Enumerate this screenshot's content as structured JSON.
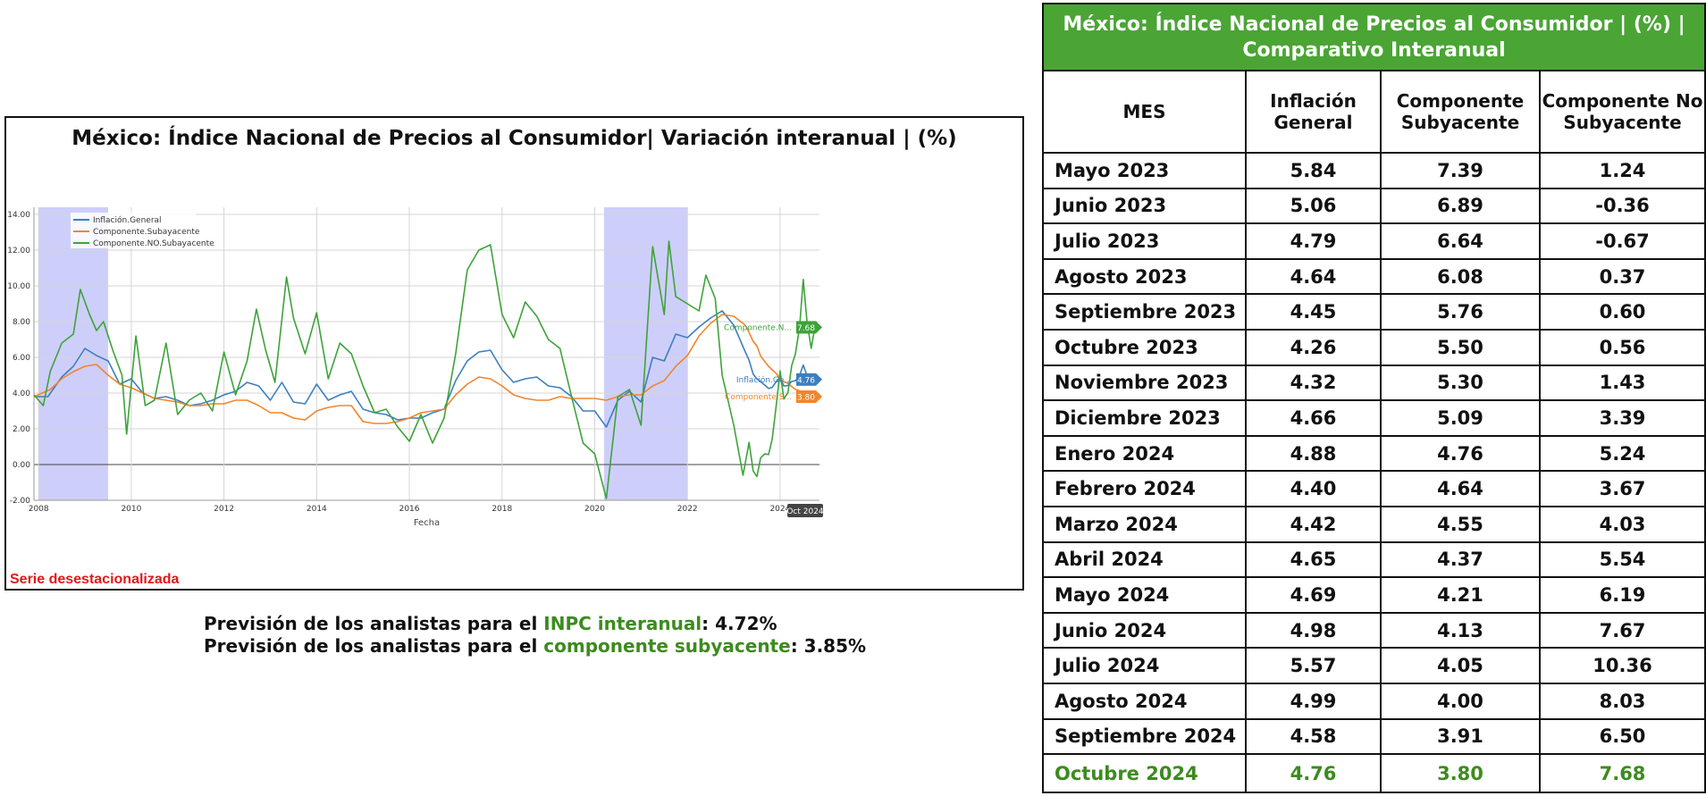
{
  "chart_data": {
    "type": "line",
    "title": "México: Índice Nacional de Precios al Consumidor| Variación interanual | (%)",
    "xlabel": "Fecha",
    "ylabel": "",
    "ylim": [
      -2,
      14
    ],
    "xlim": [
      2007.9,
      2024.85
    ],
    "x_ticks": [
      "2008",
      "2010",
      "2012",
      "2014",
      "2016",
      "2018",
      "2020",
      "2022",
      "2024"
    ],
    "y_ticks": [
      "-2.00",
      "0.00",
      "2.00",
      "4.00",
      "6.00",
      "8.00",
      "10.00",
      "12.00",
      "14.00"
    ],
    "grid": true,
    "legend": "top-left",
    "shaded_periods": [
      [
        2008.0,
        2009.5
      ],
      [
        2020.2,
        2022.0
      ]
    ],
    "series": [
      {
        "name": "Inflación.General",
        "color": "#3c7fc1",
        "points": [
          [
            2007.9,
            3.8
          ],
          [
            2008.2,
            3.8
          ],
          [
            2008.5,
            4.9
          ],
          [
            2008.75,
            5.5
          ],
          [
            2009.0,
            6.5
          ],
          [
            2009.25,
            6.1
          ],
          [
            2009.5,
            5.8
          ],
          [
            2009.75,
            4.5
          ],
          [
            2010.0,
            4.8
          ],
          [
            2010.25,
            4.0
          ],
          [
            2010.5,
            3.7
          ],
          [
            2010.75,
            3.8
          ],
          [
            2011.0,
            3.6
          ],
          [
            2011.25,
            3.3
          ],
          [
            2011.5,
            3.4
          ],
          [
            2011.75,
            3.6
          ],
          [
            2012.0,
            3.9
          ],
          [
            2012.25,
            4.1
          ],
          [
            2012.5,
            4.6
          ],
          [
            2012.75,
            4.4
          ],
          [
            2013.0,
            3.6
          ],
          [
            2013.25,
            4.6
          ],
          [
            2013.5,
            3.5
          ],
          [
            2013.75,
            3.4
          ],
          [
            2014.0,
            4.5
          ],
          [
            2014.25,
            3.6
          ],
          [
            2014.5,
            3.9
          ],
          [
            2014.75,
            4.1
          ],
          [
            2015.0,
            3.1
          ],
          [
            2015.25,
            2.9
          ],
          [
            2015.5,
            2.8
          ],
          [
            2015.75,
            2.5
          ],
          [
            2016.0,
            2.6
          ],
          [
            2016.25,
            2.6
          ],
          [
            2016.5,
            2.9
          ],
          [
            2016.75,
            3.1
          ],
          [
            2017.0,
            4.7
          ],
          [
            2017.25,
            5.8
          ],
          [
            2017.5,
            6.3
          ],
          [
            2017.75,
            6.4
          ],
          [
            2018.0,
            5.3
          ],
          [
            2018.25,
            4.6
          ],
          [
            2018.5,
            4.8
          ],
          [
            2018.75,
            4.9
          ],
          [
            2019.0,
            4.4
          ],
          [
            2019.25,
            4.3
          ],
          [
            2019.5,
            3.8
          ],
          [
            2019.75,
            3.0
          ],
          [
            2020.0,
            3.0
          ],
          [
            2020.25,
            2.1
          ],
          [
            2020.5,
            3.6
          ],
          [
            2020.75,
            4.1
          ],
          [
            2021.0,
            3.5
          ],
          [
            2021.25,
            6.0
          ],
          [
            2021.5,
            5.8
          ],
          [
            2021.75,
            7.3
          ],
          [
            2022.0,
            7.1
          ],
          [
            2022.25,
            7.7
          ],
          [
            2022.5,
            8.2
          ],
          [
            2022.75,
            8.6
          ],
          [
            2023.0,
            7.8
          ],
          [
            2023.25,
            6.3
          ],
          [
            2023.33,
            5.84
          ],
          [
            2023.42,
            5.06
          ],
          [
            2023.5,
            4.79
          ],
          [
            2023.58,
            4.64
          ],
          [
            2023.67,
            4.45
          ],
          [
            2023.75,
            4.26
          ],
          [
            2023.83,
            4.32
          ],
          [
            2023.92,
            4.66
          ],
          [
            2024.0,
            4.88
          ],
          [
            2024.08,
            4.4
          ],
          [
            2024.17,
            4.42
          ],
          [
            2024.25,
            4.65
          ],
          [
            2024.33,
            4.69
          ],
          [
            2024.42,
            4.98
          ],
          [
            2024.5,
            5.57
          ],
          [
            2024.58,
            4.99
          ],
          [
            2024.67,
            4.58
          ],
          [
            2024.75,
            4.76
          ]
        ]
      },
      {
        "name": "Componente.Subayacente",
        "color": "#f2852a",
        "points": [
          [
            2007.9,
            3.8
          ],
          [
            2008.25,
            4.2
          ],
          [
            2008.5,
            4.8
          ],
          [
            2008.75,
            5.2
          ],
          [
            2009.0,
            5.5
          ],
          [
            2009.25,
            5.6
          ],
          [
            2009.5,
            5.0
          ],
          [
            2009.75,
            4.5
          ],
          [
            2010.0,
            4.3
          ],
          [
            2010.25,
            4.0
          ],
          [
            2010.5,
            3.7
          ],
          [
            2010.75,
            3.6
          ],
          [
            2011.0,
            3.5
          ],
          [
            2011.25,
            3.3
          ],
          [
            2011.5,
            3.3
          ],
          [
            2011.75,
            3.4
          ],
          [
            2012.0,
            3.4
          ],
          [
            2012.25,
            3.6
          ],
          [
            2012.5,
            3.6
          ],
          [
            2012.75,
            3.3
          ],
          [
            2013.0,
            2.9
          ],
          [
            2013.25,
            2.9
          ],
          [
            2013.5,
            2.6
          ],
          [
            2013.75,
            2.5
          ],
          [
            2014.0,
            3.0
          ],
          [
            2014.25,
            3.2
          ],
          [
            2014.5,
            3.3
          ],
          [
            2014.75,
            3.3
          ],
          [
            2015.0,
            2.4
          ],
          [
            2015.25,
            2.3
          ],
          [
            2015.5,
            2.3
          ],
          [
            2015.75,
            2.4
          ],
          [
            2016.0,
            2.6
          ],
          [
            2016.25,
            2.9
          ],
          [
            2016.5,
            3.0
          ],
          [
            2016.75,
            3.1
          ],
          [
            2017.0,
            3.9
          ],
          [
            2017.25,
            4.5
          ],
          [
            2017.5,
            4.9
          ],
          [
            2017.75,
            4.8
          ],
          [
            2018.0,
            4.4
          ],
          [
            2018.25,
            3.9
          ],
          [
            2018.5,
            3.7
          ],
          [
            2018.75,
            3.6
          ],
          [
            2019.0,
            3.6
          ],
          [
            2019.25,
            3.8
          ],
          [
            2019.5,
            3.7
          ],
          [
            2019.75,
            3.7
          ],
          [
            2020.0,
            3.7
          ],
          [
            2020.25,
            3.6
          ],
          [
            2020.5,
            3.8
          ],
          [
            2020.75,
            3.9
          ],
          [
            2021.0,
            3.9
          ],
          [
            2021.25,
            4.4
          ],
          [
            2021.5,
            4.7
          ],
          [
            2021.75,
            5.5
          ],
          [
            2022.0,
            6.1
          ],
          [
            2022.25,
            7.2
          ],
          [
            2022.5,
            7.9
          ],
          [
            2022.75,
            8.4
          ],
          [
            2023.0,
            8.3
          ],
          [
            2023.25,
            7.8
          ],
          [
            2023.33,
            7.39
          ],
          [
            2023.42,
            6.89
          ],
          [
            2023.5,
            6.64
          ],
          [
            2023.58,
            6.08
          ],
          [
            2023.67,
            5.76
          ],
          [
            2023.75,
            5.5
          ],
          [
            2023.83,
            5.3
          ],
          [
            2023.92,
            5.09
          ],
          [
            2024.0,
            4.76
          ],
          [
            2024.08,
            4.64
          ],
          [
            2024.17,
            4.55
          ],
          [
            2024.25,
            4.37
          ],
          [
            2024.33,
            4.21
          ],
          [
            2024.42,
            4.13
          ],
          [
            2024.5,
            4.05
          ],
          [
            2024.58,
            4.0
          ],
          [
            2024.67,
            3.91
          ],
          [
            2024.75,
            3.8
          ]
        ]
      },
      {
        "name": "Componente.NO.Subayacente",
        "color": "#3da33a",
        "points": [
          [
            2007.9,
            3.9
          ],
          [
            2008.1,
            3.3
          ],
          [
            2008.25,
            5.2
          ],
          [
            2008.5,
            6.8
          ],
          [
            2008.75,
            7.3
          ],
          [
            2008.9,
            9.8
          ],
          [
            2009.1,
            8.4
          ],
          [
            2009.25,
            7.5
          ],
          [
            2009.4,
            8.0
          ],
          [
            2009.6,
            6.4
          ],
          [
            2009.8,
            5.0
          ],
          [
            2009.9,
            1.7
          ],
          [
            2010.1,
            7.2
          ],
          [
            2010.3,
            3.3
          ],
          [
            2010.5,
            3.6
          ],
          [
            2010.75,
            6.8
          ],
          [
            2011.0,
            2.8
          ],
          [
            2011.25,
            3.6
          ],
          [
            2011.5,
            4.0
          ],
          [
            2011.75,
            3.0
          ],
          [
            2012.0,
            6.3
          ],
          [
            2012.25,
            3.9
          ],
          [
            2012.5,
            5.8
          ],
          [
            2012.7,
            8.7
          ],
          [
            2012.9,
            6.4
          ],
          [
            2013.1,
            4.6
          ],
          [
            2013.35,
            10.5
          ],
          [
            2013.5,
            8.2
          ],
          [
            2013.75,
            6.2
          ],
          [
            2014.0,
            8.5
          ],
          [
            2014.25,
            4.8
          ],
          [
            2014.5,
            6.8
          ],
          [
            2014.75,
            6.2
          ],
          [
            2015.0,
            4.4
          ],
          [
            2015.25,
            2.9
          ],
          [
            2015.5,
            3.1
          ],
          [
            2015.75,
            2.1
          ],
          [
            2016.0,
            1.3
          ],
          [
            2016.25,
            2.8
          ],
          [
            2016.5,
            1.2
          ],
          [
            2016.75,
            2.6
          ],
          [
            2017.0,
            6.2
          ],
          [
            2017.25,
            10.9
          ],
          [
            2017.5,
            12.0
          ],
          [
            2017.75,
            12.3
          ],
          [
            2018.0,
            8.4
          ],
          [
            2018.25,
            7.1
          ],
          [
            2018.5,
            9.1
          ],
          [
            2018.75,
            8.3
          ],
          [
            2019.0,
            7.0
          ],
          [
            2019.25,
            6.5
          ],
          [
            2019.5,
            3.8
          ],
          [
            2019.75,
            1.2
          ],
          [
            2020.0,
            0.6
          ],
          [
            2020.25,
            -1.9
          ],
          [
            2020.5,
            3.8
          ],
          [
            2020.75,
            4.2
          ],
          [
            2021.0,
            2.2
          ],
          [
            2021.25,
            12.2
          ],
          [
            2021.5,
            8.4
          ],
          [
            2021.6,
            12.5
          ],
          [
            2021.75,
            9.4
          ],
          [
            2022.0,
            9.0
          ],
          [
            2022.25,
            8.6
          ],
          [
            2022.4,
            10.6
          ],
          [
            2022.6,
            9.3
          ],
          [
            2022.75,
            5.0
          ],
          [
            2023.0,
            2.2
          ],
          [
            2023.2,
            -0.6
          ],
          [
            2023.33,
            1.24
          ],
          [
            2023.42,
            -0.36
          ],
          [
            2023.5,
            -0.67
          ],
          [
            2023.58,
            0.37
          ],
          [
            2023.67,
            0.6
          ],
          [
            2023.75,
            0.56
          ],
          [
            2023.83,
            1.43
          ],
          [
            2023.92,
            3.39
          ],
          [
            2024.0,
            5.24
          ],
          [
            2024.08,
            3.67
          ],
          [
            2024.17,
            4.03
          ],
          [
            2024.25,
            5.54
          ],
          [
            2024.33,
            6.19
          ],
          [
            2024.42,
            7.67
          ],
          [
            2024.5,
            10.36
          ],
          [
            2024.58,
            8.03
          ],
          [
            2024.67,
            6.5
          ],
          [
            2024.75,
            7.68
          ]
        ]
      }
    ],
    "end_labels": [
      {
        "series": "Componente.NO.Subayacente",
        "text": "Componente.N...",
        "value": "7.68",
        "color": "#3da33a"
      },
      {
        "series": "Inflación.General",
        "text": "Inflación.Ge...",
        "value": "4.76",
        "color": "#3c7fc1"
      },
      {
        "series": "Componente.Subayacente",
        "text": "Componente.S...",
        "value": "3.80",
        "color": "#f2852a"
      }
    ],
    "x_end_label": "Oct 2024",
    "note": "Serie desestacionalizada"
  },
  "forecasts": [
    {
      "prefix": "Previsión de los analistas para el ",
      "highlight": "INPC interanual",
      "suffix": ": 4.72%"
    },
    {
      "prefix": "Previsión de los analistas para el ",
      "highlight": "componente subyacente",
      "suffix": ": 3.85%"
    }
  ],
  "table": {
    "title": "México: Índice Nacional de Precios al Consumidor | (%) | Comparativo Interanual",
    "headers": [
      "MES",
      "Inflación General",
      "Componente Subyacente",
      "Componente No Subyacente"
    ],
    "rows": [
      [
        "Mayo 2023",
        "5.84",
        "7.39",
        "1.24"
      ],
      [
        "Junio 2023",
        "5.06",
        "6.89",
        "-0.36"
      ],
      [
        "Julio 2023",
        "4.79",
        "6.64",
        "-0.67"
      ],
      [
        "Agosto 2023",
        "4.64",
        "6.08",
        "0.37"
      ],
      [
        "Septiembre 2023",
        "4.45",
        "5.76",
        "0.60"
      ],
      [
        "Octubre 2023",
        "4.26",
        "5.50",
        "0.56"
      ],
      [
        "Noviembre 2023",
        "4.32",
        "5.30",
        "1.43"
      ],
      [
        "Diciembre 2023",
        "4.66",
        "5.09",
        "3.39"
      ],
      [
        "Enero 2024",
        "4.88",
        "4.76",
        "5.24"
      ],
      [
        "Febrero 2024",
        "4.40",
        "4.64",
        "3.67"
      ],
      [
        "Marzo 2024",
        "4.42",
        "4.55",
        "4.03"
      ],
      [
        "Abril 2024",
        "4.65",
        "4.37",
        "5.54"
      ],
      [
        "Mayo 2024",
        "4.69",
        "4.21",
        "6.19"
      ],
      [
        "Junio 2024",
        "4.98",
        "4.13",
        "7.67"
      ],
      [
        "Julio 2024",
        "5.57",
        "4.05",
        "10.36"
      ],
      [
        "Agosto 2024",
        "4.99",
        "4.00",
        "8.03"
      ],
      [
        "Septiembre 2024",
        "4.58",
        "3.91",
        "6.50"
      ],
      [
        "Octubre 2024",
        "4.76",
        "3.80",
        "7.68"
      ]
    ]
  }
}
